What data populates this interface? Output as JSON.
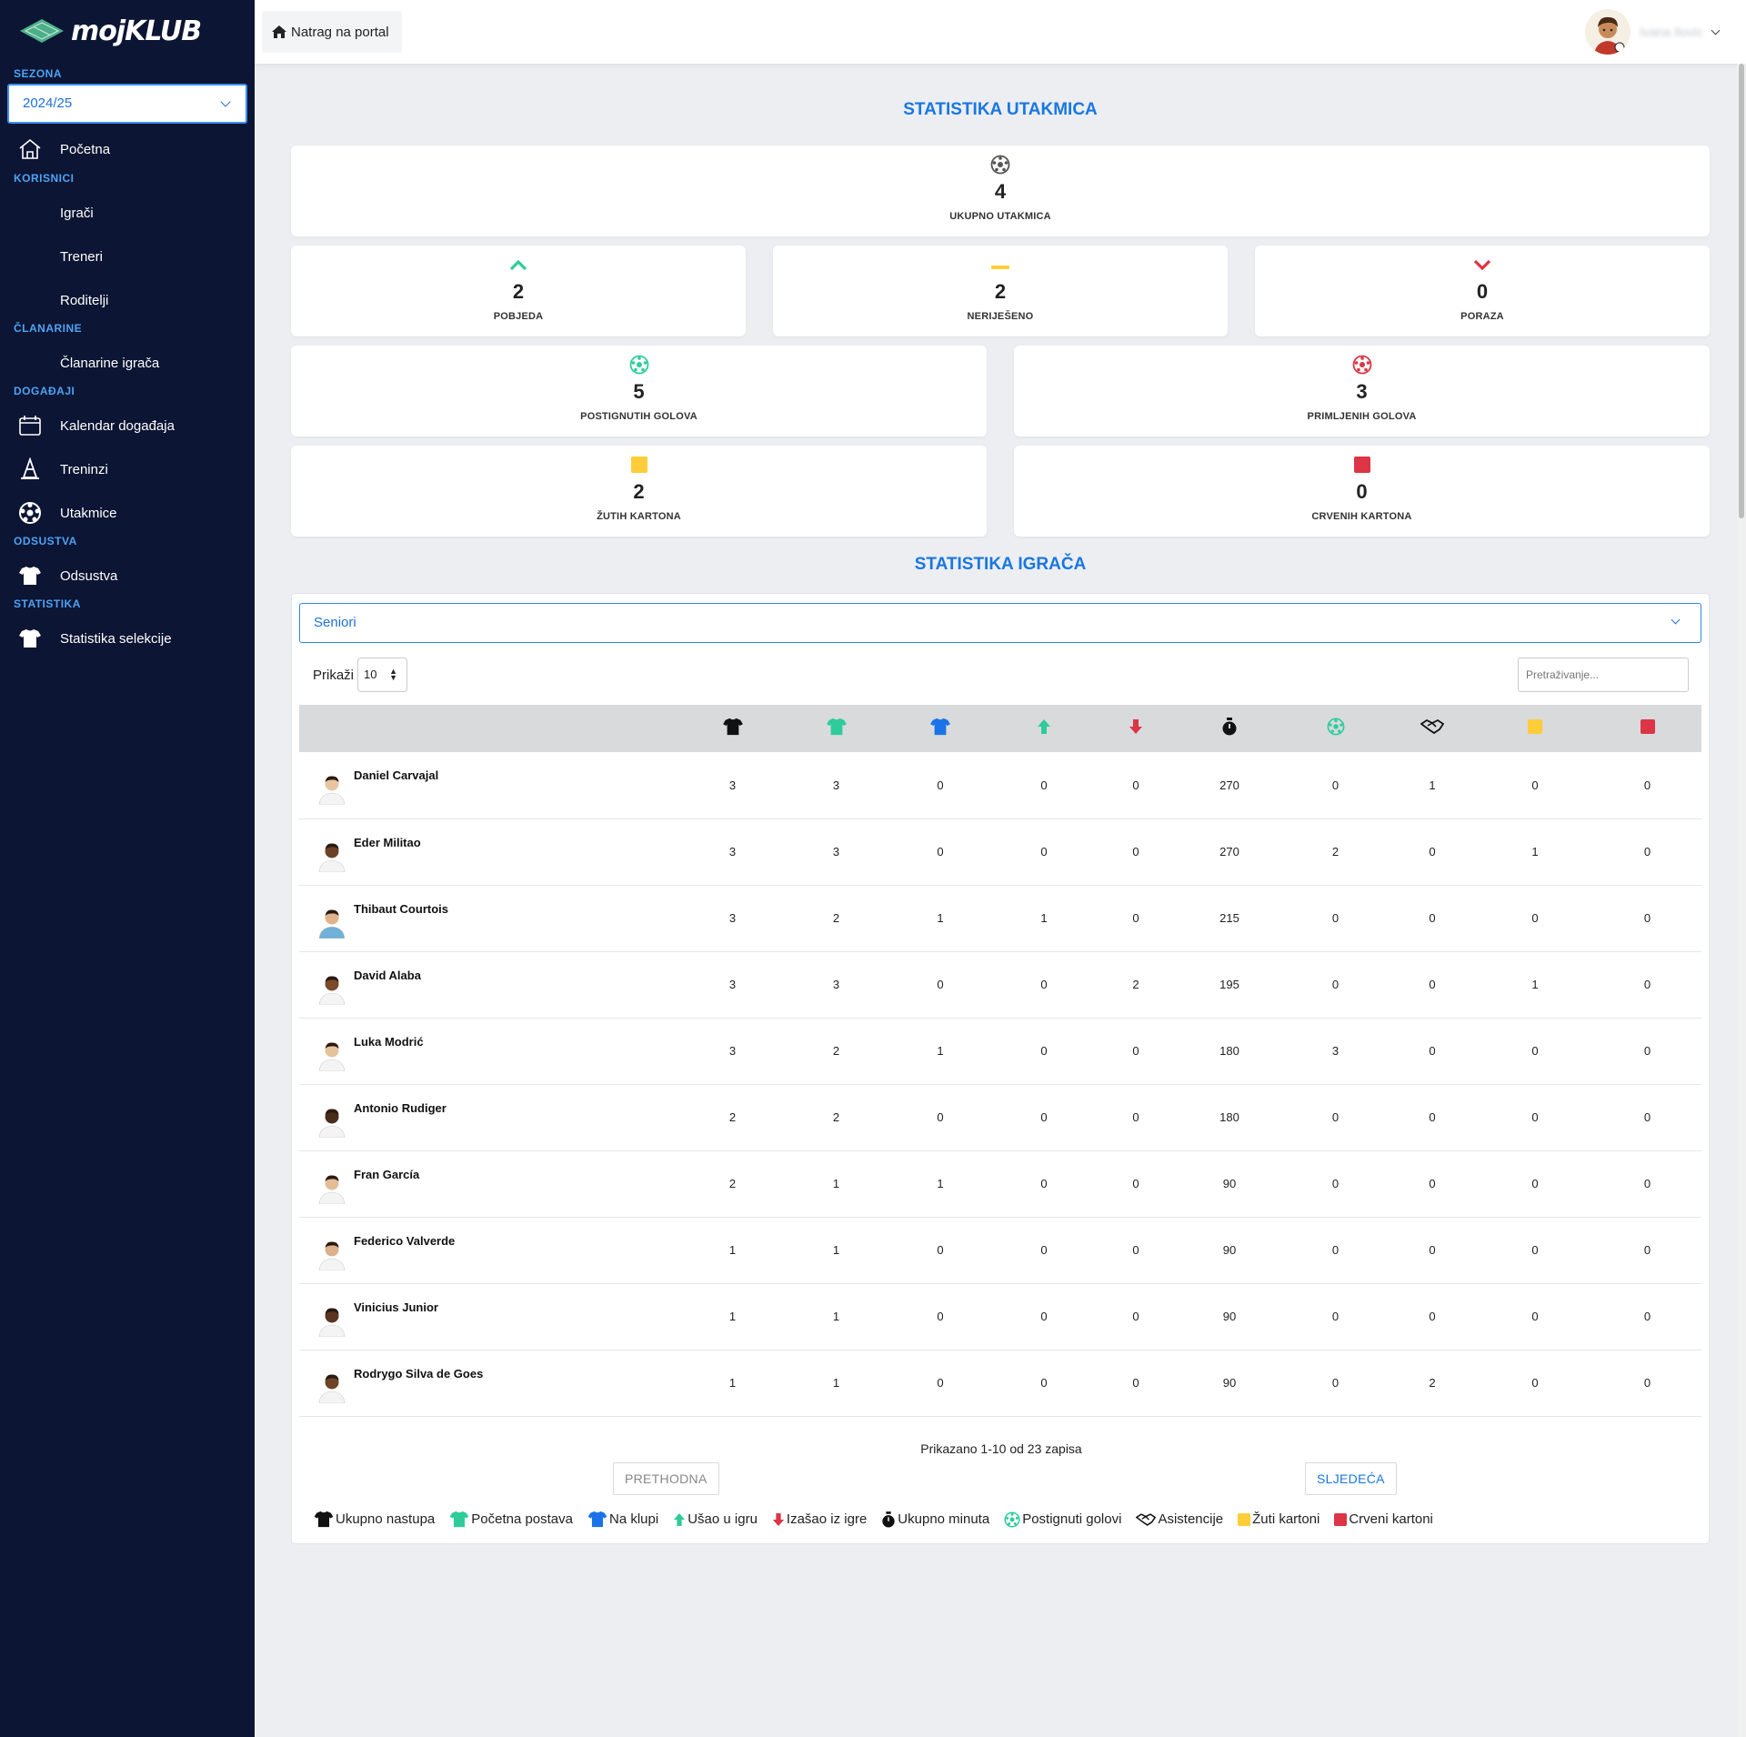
{
  "app": {
    "name": "mojKLUB"
  },
  "sidebar": {
    "season_label": "SEZONA",
    "season_value": "2024/25",
    "home": "Početna",
    "sections": {
      "korisnici": "KORISNICI",
      "clanarine": "ČLANARINE",
      "dogadaji": "DOGAĐAJI",
      "odsustva": "ODSUSTVA",
      "statistika": "STATISTIKA"
    },
    "items": {
      "igraci": "Igrači",
      "treneri": "Treneri",
      "roditelji": "Roditelji",
      "clanarine_igraca": "Članarine igrača",
      "kalendar": "Kalendar događaja",
      "treninzi": "Treninzi",
      "utakmice": "Utakmice",
      "odsustva": "Odsustva",
      "statistika_selekcije": "Statistika selekcije"
    }
  },
  "topbar": {
    "back_label": "Natrag na portal",
    "user_name": "Ivana Ilovic"
  },
  "match_stats": {
    "title": "STATISTIKA UTAKMICA",
    "total": {
      "value": "4",
      "label": "UKUPNO UTAKMICA"
    },
    "wins": {
      "value": "2",
      "label": "POBJEDA"
    },
    "draws": {
      "value": "2",
      "label": "NERIJEŠENO"
    },
    "losses": {
      "value": "0",
      "label": "PORAZA"
    },
    "goals_for": {
      "value": "5",
      "label": "POSTIGNUTIH GOLOVA"
    },
    "goals_against": {
      "value": "3",
      "label": "PRIMLJENIH GOLOVA"
    },
    "yellow": {
      "value": "2",
      "label": "ŽUTIH KARTONA"
    },
    "red": {
      "value": "0",
      "label": "CRVENIH KARTONA"
    }
  },
  "player_stats": {
    "title": "STATISTIKA IGRAČA",
    "group_value": "Seniori",
    "show_label": "Prikaži",
    "page_length": "10",
    "search_placeholder": "Pretraživanje...",
    "rows": [
      {
        "name": "Daniel Carvajal",
        "v": [
          "3",
          "3",
          "0",
          "0",
          "0",
          "270",
          "0",
          "1",
          "0",
          "0"
        ]
      },
      {
        "name": "Eder Militao",
        "v": [
          "3",
          "3",
          "0",
          "0",
          "0",
          "270",
          "2",
          "0",
          "1",
          "0"
        ]
      },
      {
        "name": "Thibaut Courtois",
        "v": [
          "3",
          "2",
          "1",
          "1",
          "0",
          "215",
          "0",
          "0",
          "0",
          "0"
        ]
      },
      {
        "name": "David Alaba",
        "v": [
          "3",
          "3",
          "0",
          "0",
          "2",
          "195",
          "0",
          "0",
          "1",
          "0"
        ]
      },
      {
        "name": "Luka Modrić",
        "v": [
          "3",
          "2",
          "1",
          "0",
          "0",
          "180",
          "3",
          "0",
          "0",
          "0"
        ]
      },
      {
        "name": "Antonio Rudiger",
        "v": [
          "2",
          "2",
          "0",
          "0",
          "0",
          "180",
          "0",
          "0",
          "0",
          "0"
        ]
      },
      {
        "name": "Fran García",
        "v": [
          "2",
          "1",
          "1",
          "0",
          "0",
          "90",
          "0",
          "0",
          "0",
          "0"
        ]
      },
      {
        "name": "Federico Valverde",
        "v": [
          "1",
          "1",
          "0",
          "0",
          "0",
          "90",
          "0",
          "0",
          "0",
          "0"
        ]
      },
      {
        "name": "Vinicius Junior",
        "v": [
          "1",
          "1",
          "0",
          "0",
          "0",
          "90",
          "0",
          "0",
          "0",
          "0"
        ]
      },
      {
        "name": "Rodrygo Silva de Goes",
        "v": [
          "1",
          "1",
          "0",
          "0",
          "0",
          "90",
          "0",
          "2",
          "0",
          "0"
        ]
      }
    ],
    "info": "Prikazano 1-10 od 23 zapisa",
    "prev": "PRETHODNA",
    "next": "SLJEDEĆA",
    "legend": {
      "total": "Ukupno nastupa",
      "start": "Početna postava",
      "bench": "Na klupi",
      "in": "Ušao u igru",
      "out": "Izašao iz igre",
      "minutes": "Ukupno minuta",
      "goals": "Postignuti golovi",
      "assists": "Asistencije",
      "yellow": "Žuti kartoni",
      "red": "Crveni kartoni"
    }
  },
  "colors": {
    "sidebar": "#0c1533",
    "accent": "#1977e0",
    "green": "#2ecc9a",
    "blue": "#1a73e8",
    "red": "#dc3545",
    "yellow": "#ffcd39"
  }
}
